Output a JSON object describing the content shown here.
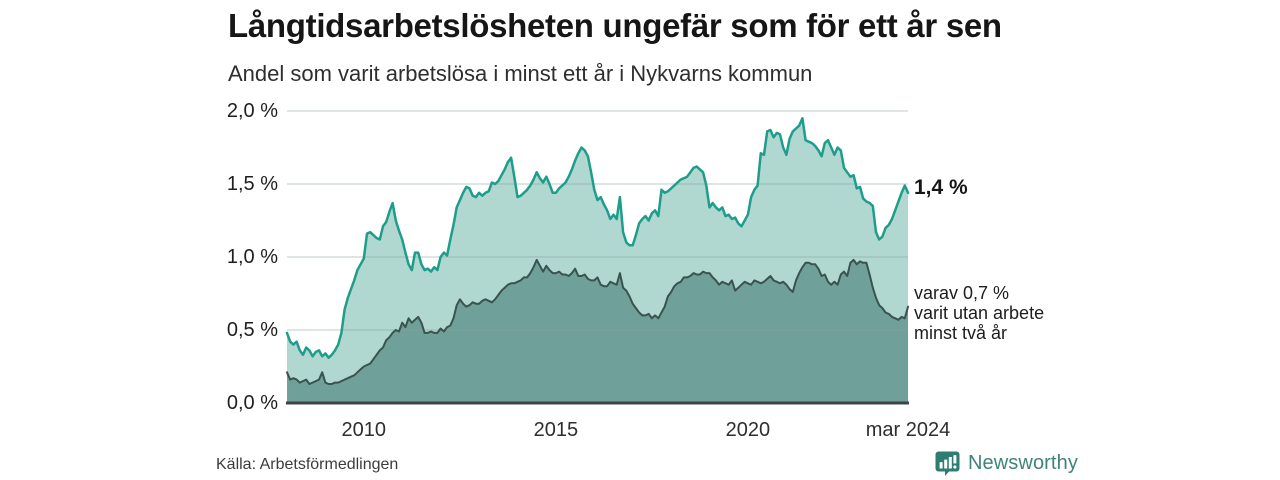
{
  "header": {
    "title": "Långtidsarbetslösheten ungefär som för ett år sen",
    "subtitle": "Andel som varit arbetslösa i minst ett år i Nykvarns kommun"
  },
  "chart_data": {
    "type": "area",
    "title": "Långtidsarbetslösheten ungefär som för ett år sen",
    "subtitle": "Andel som varit arbetslösa i minst ett år i Nykvarns kommun",
    "unit": "%",
    "frequency": "monthly",
    "x_start": "jan 2008",
    "x_end": "mar 2024",
    "grid": true,
    "ylim": [
      0,
      2.0
    ],
    "y_ticks": [
      {
        "label": "0,0 %",
        "value": 0
      },
      {
        "label": "0,5 %",
        "value": 0.5
      },
      {
        "label": "1,0 %",
        "value": 1.0
      },
      {
        "label": "1,5 %",
        "value": 1.5
      },
      {
        "label": "2,0 %",
        "value": 2.0
      }
    ],
    "x_ticks": [
      {
        "label": "2010",
        "index": 24
      },
      {
        "label": "2015",
        "index": 84
      },
      {
        "label": "2020",
        "index": 144
      },
      {
        "label": "mar 2024",
        "index": 194
      }
    ],
    "series": [
      {
        "name": "Andel som varit arbetslösa i minst ett år",
        "color": "#1f9d8b",
        "fill": "#b0d8d1",
        "line_width": 2.5,
        "values": [
          0.48,
          0.42,
          0.4,
          0.42,
          0.36,
          0.33,
          0.38,
          0.36,
          0.32,
          0.35,
          0.36,
          0.32,
          0.34,
          0.31,
          0.33,
          0.36,
          0.4,
          0.48,
          0.64,
          0.72,
          0.78,
          0.84,
          0.91,
          0.95,
          0.99,
          1.16,
          1.17,
          1.15,
          1.13,
          1.12,
          1.21,
          1.24,
          1.31,
          1.37,
          1.25,
          1.18,
          1.12,
          1.03,
          0.95,
          0.91,
          1.03,
          1.03,
          0.95,
          0.91,
          0.92,
          0.9,
          0.93,
          0.91,
          1.0,
          1.03,
          1.01,
          1.12,
          1.22,
          1.34,
          1.39,
          1.44,
          1.48,
          1.47,
          1.42,
          1.41,
          1.44,
          1.42,
          1.44,
          1.45,
          1.51,
          1.5,
          1.52,
          1.56,
          1.6,
          1.65,
          1.68,
          1.55,
          1.41,
          1.42,
          1.44,
          1.46,
          1.49,
          1.53,
          1.58,
          1.54,
          1.51,
          1.55,
          1.5,
          1.44,
          1.44,
          1.47,
          1.49,
          1.51,
          1.55,
          1.6,
          1.66,
          1.71,
          1.75,
          1.73,
          1.69,
          1.58,
          1.46,
          1.39,
          1.41,
          1.36,
          1.32,
          1.26,
          1.29,
          1.26,
          1.41,
          1.17,
          1.1,
          1.08,
          1.08,
          1.15,
          1.23,
          1.26,
          1.28,
          1.25,
          1.3,
          1.32,
          1.28,
          1.46,
          1.44,
          1.45,
          1.47,
          1.49,
          1.51,
          1.53,
          1.54,
          1.55,
          1.58,
          1.61,
          1.62,
          1.6,
          1.58,
          1.49,
          1.34,
          1.37,
          1.34,
          1.32,
          1.34,
          1.28,
          1.29,
          1.26,
          1.27,
          1.23,
          1.21,
          1.25,
          1.29,
          1.41,
          1.46,
          1.49,
          1.71,
          1.7,
          1.86,
          1.87,
          1.82,
          1.85,
          1.84,
          1.75,
          1.7,
          1.81,
          1.86,
          1.88,
          1.9,
          1.95,
          1.8,
          1.79,
          1.78,
          1.76,
          1.73,
          1.69,
          1.78,
          1.8,
          1.75,
          1.7,
          1.75,
          1.73,
          1.61,
          1.58,
          1.55,
          1.56,
          1.47,
          1.48,
          1.4,
          1.38,
          1.37,
          1.35,
          1.17,
          1.12,
          1.14,
          1.2,
          1.22,
          1.26,
          1.32,
          1.38,
          1.44,
          1.49,
          1.44
        ]
      },
      {
        "name": "varav utan arbete minst två år",
        "color": "#3a534e",
        "fill": "#6fa19a",
        "line_width": 2,
        "values": [
          0.21,
          0.16,
          0.17,
          0.16,
          0.14,
          0.15,
          0.16,
          0.13,
          0.14,
          0.15,
          0.16,
          0.21,
          0.14,
          0.13,
          0.13,
          0.14,
          0.14,
          0.15,
          0.16,
          0.17,
          0.18,
          0.19,
          0.21,
          0.23,
          0.25,
          0.26,
          0.27,
          0.3,
          0.33,
          0.36,
          0.38,
          0.43,
          0.45,
          0.48,
          0.5,
          0.49,
          0.55,
          0.52,
          0.58,
          0.55,
          0.57,
          0.59,
          0.55,
          0.48,
          0.48,
          0.49,
          0.48,
          0.48,
          0.51,
          0.49,
          0.52,
          0.53,
          0.58,
          0.67,
          0.71,
          0.68,
          0.66,
          0.67,
          0.69,
          0.68,
          0.68,
          0.7,
          0.71,
          0.7,
          0.69,
          0.71,
          0.74,
          0.77,
          0.79,
          0.81,
          0.82,
          0.82,
          0.83,
          0.84,
          0.86,
          0.86,
          0.89,
          0.93,
          0.98,
          0.94,
          0.9,
          0.94,
          0.91,
          0.89,
          0.89,
          0.9,
          0.88,
          0.88,
          0.87,
          0.89,
          0.92,
          0.87,
          0.87,
          0.88,
          0.85,
          0.84,
          0.84,
          0.86,
          0.81,
          0.8,
          0.8,
          0.83,
          0.82,
          0.81,
          0.89,
          0.79,
          0.77,
          0.73,
          0.68,
          0.65,
          0.62,
          0.6,
          0.6,
          0.61,
          0.58,
          0.6,
          0.58,
          0.62,
          0.66,
          0.73,
          0.76,
          0.8,
          0.82,
          0.83,
          0.86,
          0.86,
          0.87,
          0.89,
          0.88,
          0.88,
          0.9,
          0.89,
          0.89,
          0.86,
          0.84,
          0.81,
          0.83,
          0.82,
          0.81,
          0.84,
          0.77,
          0.79,
          0.81,
          0.83,
          0.82,
          0.81,
          0.84,
          0.83,
          0.82,
          0.83,
          0.85,
          0.87,
          0.84,
          0.83,
          0.82,
          0.83,
          0.81,
          0.78,
          0.76,
          0.84,
          0.89,
          0.93,
          0.96,
          0.96,
          0.95,
          0.95,
          0.92,
          0.87,
          0.88,
          0.83,
          0.81,
          0.83,
          0.81,
          0.88,
          0.9,
          0.87,
          0.96,
          0.98,
          0.95,
          0.97,
          0.96,
          0.96,
          0.88,
          0.79,
          0.72,
          0.67,
          0.65,
          0.62,
          0.61,
          0.59,
          0.58,
          0.57,
          0.59,
          0.58,
          0.66
        ]
      }
    ],
    "annotations": {
      "total_end_label": "1,4 %",
      "secondary_end_label_lines": [
        "varav 0,7 %",
        "varit utan arbete",
        "minst två år"
      ]
    },
    "colors": {
      "grid": "#dadedd",
      "axis": "#3f4443",
      "accent_teal": "#1f9d8b",
      "brand_teal": "#2f7d72"
    }
  },
  "footer": {
    "source": "Källa: Arbetsförmedlingen",
    "brand": "Newsworthy"
  }
}
